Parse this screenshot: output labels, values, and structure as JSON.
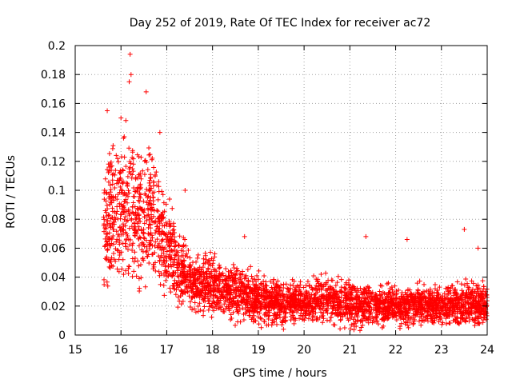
{
  "chart_data": {
    "type": "scatter",
    "title": "Day 252 of 2019, Rate Of TEC Index for receiver ac72",
    "xlabel": "GPS time / hours",
    "ylabel": "ROTI / TECUs",
    "xlim": [
      15,
      24
    ],
    "ylim": [
      0,
      0.2
    ],
    "xticks": [
      15,
      16,
      17,
      18,
      19,
      20,
      21,
      22,
      23,
      24
    ],
    "yticks": [
      0,
      0.02,
      0.04,
      0.06,
      0.08,
      0.1,
      0.12,
      0.14,
      0.16,
      0.18,
      0.2
    ],
    "xtick_labels": [
      "15",
      "16",
      "17",
      "18",
      "19",
      "20",
      "21",
      "22",
      "23",
      "24"
    ],
    "ytick_labels": [
      "0",
      "0.02",
      "0.04",
      "0.06",
      "0.08",
      "0.1",
      "0.12",
      "0.14",
      "0.16",
      "0.18",
      "0.2"
    ],
    "grid": true,
    "marker": "+",
    "color": "#ff0000",
    "series": [
      {
        "name": "ROTI",
        "envelope": [
          {
            "x": 15.62,
            "mean": 0.075,
            "spread": 0.06
          },
          {
            "x": 15.8,
            "mean": 0.085,
            "spread": 0.065
          },
          {
            "x": 16.0,
            "mean": 0.09,
            "spread": 0.065
          },
          {
            "x": 16.2,
            "mean": 0.085,
            "spread": 0.07
          },
          {
            "x": 16.4,
            "mean": 0.08,
            "spread": 0.065
          },
          {
            "x": 16.6,
            "mean": 0.085,
            "spread": 0.07
          },
          {
            "x": 16.8,
            "mean": 0.075,
            "spread": 0.06
          },
          {
            "x": 17.0,
            "mean": 0.06,
            "spread": 0.045
          },
          {
            "x": 17.3,
            "mean": 0.045,
            "spread": 0.035
          },
          {
            "x": 17.6,
            "mean": 0.035,
            "spread": 0.025
          },
          {
            "x": 18.0,
            "mean": 0.035,
            "spread": 0.028
          },
          {
            "x": 18.5,
            "mean": 0.03,
            "spread": 0.025
          },
          {
            "x": 19.0,
            "mean": 0.025,
            "spread": 0.022
          },
          {
            "x": 19.5,
            "mean": 0.022,
            "spread": 0.02
          },
          {
            "x": 20.0,
            "mean": 0.022,
            "spread": 0.02
          },
          {
            "x": 20.5,
            "mean": 0.025,
            "spread": 0.022
          },
          {
            "x": 21.0,
            "mean": 0.022,
            "spread": 0.022
          },
          {
            "x": 21.5,
            "mean": 0.02,
            "spread": 0.018
          },
          {
            "x": 22.0,
            "mean": 0.02,
            "spread": 0.018
          },
          {
            "x": 22.5,
            "mean": 0.021,
            "spread": 0.018
          },
          {
            "x": 23.0,
            "mean": 0.02,
            "spread": 0.018
          },
          {
            "x": 23.5,
            "mean": 0.022,
            "spread": 0.022
          },
          {
            "x": 24.0,
            "mean": 0.02,
            "spread": 0.02
          }
        ],
        "notable_points": [
          {
            "x": 16.2,
            "y": 0.194
          },
          {
            "x": 16.22,
            "y": 0.18
          },
          {
            "x": 16.18,
            "y": 0.175
          },
          {
            "x": 16.55,
            "y": 0.168
          },
          {
            "x": 15.7,
            "y": 0.155
          },
          {
            "x": 16.0,
            "y": 0.15
          },
          {
            "x": 16.85,
            "y": 0.14
          },
          {
            "x": 17.4,
            "y": 0.1
          },
          {
            "x": 23.5,
            "y": 0.073
          },
          {
            "x": 21.35,
            "y": 0.068
          },
          {
            "x": 22.25,
            "y": 0.066
          },
          {
            "x": 18.7,
            "y": 0.068
          },
          {
            "x": 23.8,
            "y": 0.06
          },
          {
            "x": 19.55,
            "y": 0.004
          }
        ],
        "point_count": 3600
      }
    ]
  }
}
